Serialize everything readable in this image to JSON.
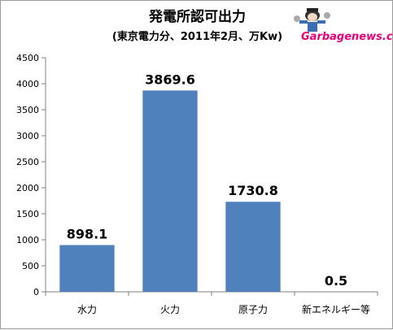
{
  "chart_data": {
    "type": "bar",
    "title": "発電所認可出力",
    "subtitle": "(東京電力分、2011年2月、万Kw)",
    "categories": [
      "水力",
      "火力",
      "原子力",
      "新エネルギー等"
    ],
    "values": [
      898.1,
      3869.6,
      1730.8,
      0.5
    ],
    "data_labels": [
      "898.1",
      "3869.6",
      "1730.8",
      "0.5"
    ],
    "ylim": [
      0,
      4500
    ],
    "yticks": [
      0,
      500,
      1000,
      1500,
      2000,
      2500,
      3000,
      3500,
      4000,
      4500
    ],
    "ytick_labels": [
      "0",
      "500",
      "1000",
      "1500",
      "2000",
      "2500",
      "3000",
      "3500",
      "4000",
      "4500"
    ],
    "grid": false,
    "legend": "none",
    "bar_color": "#4f81bd"
  },
  "logo": {
    "text": "Garbagenews.com",
    "color": "#e6007a",
    "icon": "mascot-icon"
  }
}
